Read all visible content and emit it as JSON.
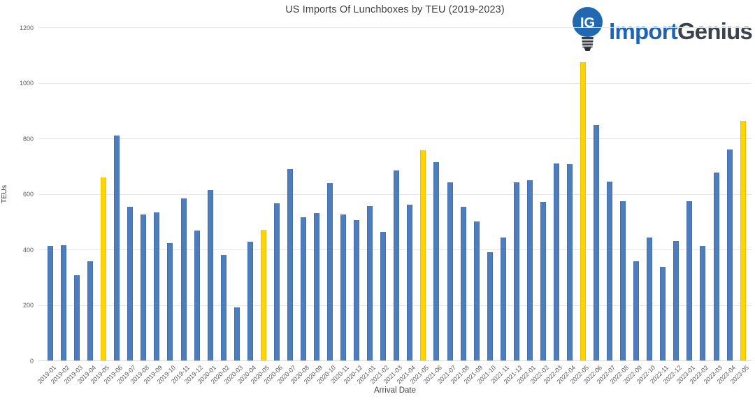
{
  "chart": {
    "title": "US Imports Of Lunchboxes by TEU (2019-2023)",
    "xlabel": "Arrival Date",
    "ylabel": "TEUs"
  },
  "logo": {
    "icon": "lightbulb-ig-icon",
    "icon_monogram": "IG",
    "text_primary": "Import",
    "text_secondary": "Genius",
    "color_primary": "#1F63B5",
    "color_secondary": "#39424D",
    "icon_color": "#2168B0"
  },
  "chart_data": {
    "type": "bar",
    "title": "US Imports Of Lunchboxes by TEU (2019-2023)",
    "xlabel": "Arrival Date",
    "ylabel": "TEUs",
    "ylim": [
      0,
      1200
    ],
    "yticks": [
      0,
      200,
      400,
      600,
      800,
      1000,
      1200
    ],
    "grid": true,
    "legend": "none",
    "categories": [
      "2019-01",
      "2019-02",
      "2019-03",
      "2019-04",
      "2019-05",
      "2019-06",
      "2019-07",
      "2019-08",
      "2019-09",
      "2019-10",
      "2019-11",
      "2019-12",
      "2020-01",
      "2020-02",
      "2020-03",
      "2020-04",
      "2020-05",
      "2020-06",
      "2020-07",
      "2020-08",
      "2020-09",
      "2020-10",
      "2020-11",
      "2020-12",
      "2021-01",
      "2021-02",
      "2021-03",
      "2021-04",
      "2021-05",
      "2021-06",
      "2021-07",
      "2021-08",
      "2021-09",
      "2021-10",
      "2021-11",
      "2021-12",
      "2022-01",
      "2022-02",
      "2022-03",
      "2022-04",
      "2022-05",
      "2022-06",
      "2022-07",
      "2022-08",
      "2022-09",
      "2022-10",
      "2022-11",
      "2022-12",
      "2023-01",
      "2023-02",
      "2023-03",
      "2023-04",
      "2023-05"
    ],
    "values": [
      413,
      415,
      308,
      357,
      660,
      810,
      553,
      525,
      533,
      424,
      583,
      467,
      615,
      380,
      192,
      427,
      470,
      567,
      690,
      517,
      530,
      638,
      525,
      505,
      556,
      462,
      684,
      562,
      757,
      715,
      642,
      553,
      500,
      390,
      443,
      641,
      648,
      571,
      710,
      707,
      1075,
      848,
      645,
      574,
      358,
      442,
      337,
      430,
      574,
      413,
      678,
      760,
      862
    ],
    "highlight_categories": [
      "2019-05",
      "2020-05",
      "2021-05",
      "2022-05",
      "2023-05"
    ],
    "colors": {
      "primary": "#4E7DBE",
      "highlight": "#FFD400",
      "gridline": "#E7E7E7",
      "axis_line": "#D6D6D6",
      "tick_text": "#595959",
      "title_text": "#3F3F3F"
    }
  }
}
